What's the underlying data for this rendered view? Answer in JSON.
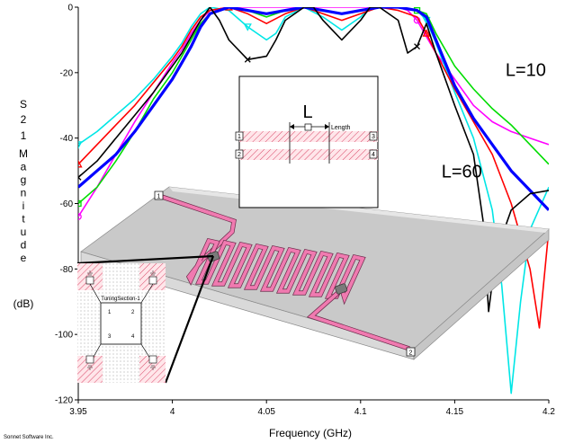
{
  "chart_data": {
    "type": "line",
    "title": "",
    "xlabel": "Frequency (GHz)",
    "ylabel_chars": [
      "S",
      "2",
      "1",
      "M",
      "a",
      "g",
      "n",
      "i",
      "t",
      "u",
      "d",
      "e"
    ],
    "ylabel_unit": "(dB)",
    "xlim": [
      3.95,
      4.2
    ],
    "ylim": [
      -120,
      0
    ],
    "xticks": [
      "3.95",
      "4",
      "4.05",
      "4.1",
      "4.15",
      "4.2"
    ],
    "yticks": [
      "0",
      "-20",
      "-40",
      "-60",
      "-80",
      "-100",
      "-120"
    ],
    "grid": false,
    "annotations": [
      {
        "text": "L=10",
        "x": 4.177,
        "y": -21
      },
      {
        "text": "L=60",
        "x": 4.143,
        "y": -52
      }
    ],
    "series": [
      {
        "color": "#ff00ff",
        "marker": "circle",
        "x": [
          3.95,
          3.96,
          3.97,
          3.98,
          3.99,
          4.0,
          4.005,
          4.01,
          4.015,
          4.02,
          4.03,
          4.04,
          4.05,
          4.06,
          4.07,
          4.08,
          4.09,
          4.1,
          4.11,
          4.12,
          4.125,
          4.13,
          4.135,
          4.14,
          4.15,
          4.16,
          4.17,
          4.18,
          4.19,
          4.2
        ],
        "y": [
          -64,
          -55,
          -45,
          -35,
          -26,
          -17,
          -13,
          -8,
          -4,
          -1,
          0,
          0,
          0,
          0,
          0,
          0,
          0,
          0,
          0,
          0,
          -1,
          -4,
          -9,
          -14,
          -22,
          -30,
          -35,
          -38,
          -40,
          -42
        ]
      },
      {
        "color": "#00e6e6",
        "marker": "triangle-down",
        "x": [
          3.95,
          3.96,
          3.97,
          3.98,
          3.99,
          4.0,
          4.005,
          4.01,
          4.015,
          4.02,
          4.03,
          4.04,
          4.05,
          4.055,
          4.06,
          4.07,
          4.08,
          4.09,
          4.1,
          4.105,
          4.11,
          4.12,
          4.13,
          4.135,
          4.14,
          4.15,
          4.16,
          4.17,
          4.175,
          4.18,
          4.185,
          4.19,
          4.2
        ],
        "y": [
          -42,
          -38,
          -33,
          -28,
          -22,
          -15,
          -11,
          -6,
          -2,
          0,
          -1,
          -6,
          -10,
          -8,
          -3,
          0,
          -3,
          -7,
          -3,
          0,
          0,
          0,
          -1,
          -4,
          -11,
          -26,
          -40,
          -62,
          -85,
          -118,
          -90,
          -68,
          -55
        ]
      },
      {
        "color": "#00dd00",
        "marker": "square",
        "x": [
          3.95,
          3.96,
          3.97,
          3.98,
          3.99,
          4.0,
          4.005,
          4.01,
          4.015,
          4.02,
          4.03,
          4.04,
          4.05,
          4.06,
          4.07,
          4.08,
          4.09,
          4.1,
          4.11,
          4.12,
          4.13,
          4.135,
          4.14,
          4.15,
          4.16,
          4.17,
          4.18,
          4.19,
          4.2
        ],
        "y": [
          -60,
          -55,
          -47,
          -38,
          -28,
          -20,
          -15,
          -10,
          -5,
          -2,
          0,
          -1,
          -3,
          -1,
          0,
          -1,
          -2,
          -1,
          0,
          0,
          -1,
          -2,
          -8,
          -18,
          -25,
          -31,
          -36,
          -42,
          -48
        ]
      },
      {
        "color": "#ff0000",
        "marker": "triangle",
        "x": [
          3.95,
          3.96,
          3.97,
          3.98,
          3.99,
          4.0,
          4.005,
          4.01,
          4.015,
          4.02,
          4.03,
          4.04,
          4.05,
          4.06,
          4.07,
          4.08,
          4.09,
          4.1,
          4.11,
          4.12,
          4.13,
          4.135,
          4.14,
          4.15,
          4.16,
          4.17,
          4.18,
          4.19,
          4.195,
          4.2
        ],
        "y": [
          -48,
          -42,
          -36,
          -30,
          -23,
          -16,
          -12,
          -7,
          -3,
          -1,
          0,
          -2,
          -5,
          -2,
          0,
          -2,
          -4,
          -2,
          0,
          -1,
          -3,
          -8,
          -14,
          -25,
          -35,
          -45,
          -60,
          -80,
          -98,
          -68
        ]
      },
      {
        "color": "#0000ff",
        "marker": "none",
        "x": [
          3.95,
          3.96,
          3.97,
          3.98,
          3.99,
          4.0,
          4.005,
          4.01,
          4.015,
          4.02,
          4.03,
          4.04,
          4.05,
          4.06,
          4.07,
          4.08,
          4.09,
          4.1,
          4.11,
          4.12,
          4.13,
          4.135,
          4.14,
          4.15,
          4.16,
          4.17,
          4.18,
          4.19,
          4.2
        ],
        "y": [
          -55,
          -50,
          -45,
          -38,
          -30,
          -22,
          -17,
          -12,
          -6,
          -2,
          0,
          -1,
          -2,
          -1,
          0,
          -1,
          -2,
          -1,
          0,
          0,
          -1,
          -3,
          -10,
          -24,
          -34,
          -42,
          -50,
          -56,
          -62
        ]
      },
      {
        "color": "#000000",
        "marker": "x",
        "x": [
          3.95,
          3.96,
          3.97,
          3.98,
          3.99,
          4.0,
          4.005,
          4.01,
          4.015,
          4.02,
          4.025,
          4.03,
          4.04,
          4.05,
          4.055,
          4.06,
          4.07,
          4.075,
          4.08,
          4.09,
          4.1,
          4.105,
          4.11,
          4.12,
          4.125,
          4.13,
          4.135,
          4.14,
          4.15,
          4.16,
          4.165,
          4.168,
          4.172,
          4.18,
          4.19,
          4.2
        ],
        "y": [
          -52,
          -47,
          -40,
          -33,
          -26,
          -18,
          -14,
          -9,
          -4,
          0,
          -4,
          -10,
          -16,
          -15,
          -10,
          -4,
          0,
          0,
          -4,
          -10,
          -4,
          0,
          0,
          -4,
          -14,
          -12,
          -5,
          -14,
          -30,
          -45,
          -65,
          -93,
          -75,
          -62,
          -57,
          -56
        ]
      }
    ]
  },
  "inset_schematic": {
    "length_label": "L",
    "length_caption": "Length",
    "ports": [
      "1",
      "2",
      "3",
      "4"
    ]
  },
  "tuning_inset": {
    "title": "TuningSection-1",
    "ports": [
      "1",
      "2",
      "3",
      "4"
    ]
  },
  "circuit_ports": [
    "1",
    "2"
  ],
  "credit": "Sonnet Software Inc."
}
